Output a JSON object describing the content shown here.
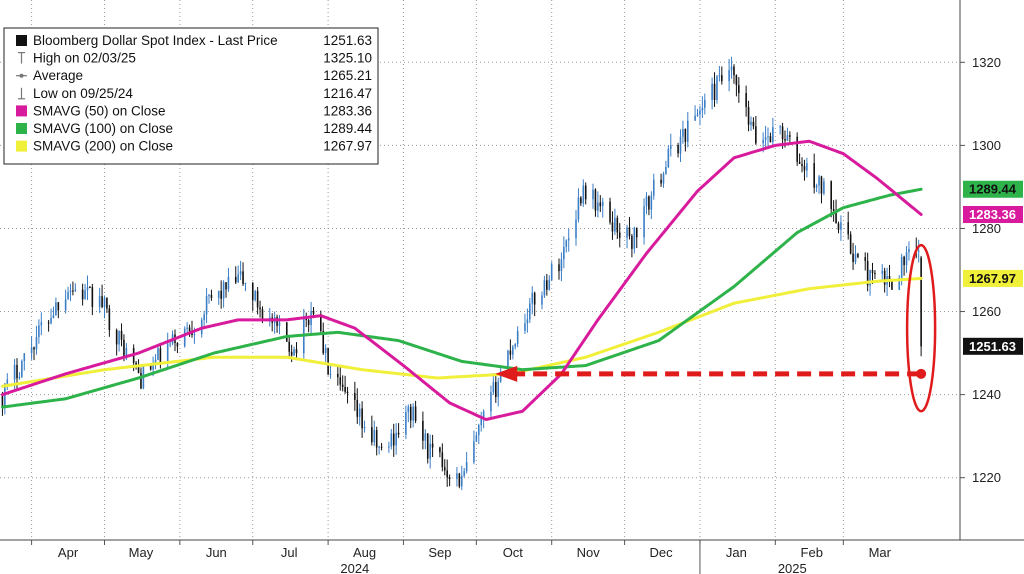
{
  "chart_data": {
    "type": "line",
    "ylim": [
      1205,
      1335
    ],
    "grid": true,
    "legend_placement": "top-left",
    "y_ticks": [
      1220,
      1240,
      1260,
      1280,
      1300,
      1320
    ],
    "x_ticks": [
      {
        "label": "Apr",
        "date": "2024-04-01"
      },
      {
        "label": "May",
        "date": "2024-05-01"
      },
      {
        "label": "Jun",
        "date": "2024-06-01"
      },
      {
        "label": "Jul",
        "date": "2024-07-01"
      },
      {
        "label": "Aug",
        "date": "2024-08-01"
      },
      {
        "label": "Sep",
        "date": "2024-09-01"
      },
      {
        "label": "Oct",
        "date": "2024-10-01"
      },
      {
        "label": "Nov",
        "date": "2024-11-01"
      },
      {
        "label": "Dec",
        "date": "2024-12-01"
      },
      {
        "label": "Jan",
        "date": "2025-01-01"
      },
      {
        "label": "Feb",
        "date": "2025-02-01"
      },
      {
        "label": "Mar",
        "date": "2025-03-01"
      }
    ],
    "year_labels": [
      {
        "label": "2024",
        "date": "2024-08-12"
      },
      {
        "label": "2025",
        "date": "2025-02-08"
      }
    ],
    "legend": [
      {
        "name": "Bloomberg Dollar Spot Index - Last Price",
        "value": "1251.63",
        "marker": "square",
        "color": "#111111"
      },
      {
        "name": "High on 02/03/25",
        "value": "1325.10",
        "marker": "high",
        "color": "#777777"
      },
      {
        "name": "Average",
        "value": "1265.21",
        "marker": "avg",
        "color": "#777777"
      },
      {
        "name": "Low on 09/25/24",
        "value": "1216.47",
        "marker": "low",
        "color": "#777777"
      },
      {
        "name": "SMAVG (50)  on Close",
        "value": "1283.36",
        "marker": "square",
        "color": "#d81b9c"
      },
      {
        "name": "SMAVG (100)  on Close",
        "value": "1289.44",
        "marker": "square",
        "color": "#2db34a"
      },
      {
        "name": "SMAVG (200)  on Close",
        "value": "1267.97",
        "marker": "square",
        "color": "#f0ef3a"
      }
    ],
    "value_tags": [
      {
        "value": 1289.44,
        "text": "1289.44",
        "bg": "#2db34a",
        "fg": "#111111"
      },
      {
        "value": 1283.36,
        "text": "1283.36",
        "bg": "#d81b9c",
        "fg": "#ffffff"
      },
      {
        "value": 1267.97,
        "text": "1267.97",
        "bg": "#f0ef3a",
        "fg": "#111111"
      },
      {
        "value": 1251.63,
        "text": "1251.63",
        "bg": "#111111",
        "fg": "#ffffff"
      }
    ],
    "colors": {
      "up": "#3a7ec6",
      "down": "#111111",
      "sma50": "#d81b9c",
      "sma100": "#2db34a",
      "sma200": "#f0ef3a",
      "annotation": "#e01b1b"
    },
    "price_anchors": [
      {
        "date": "2024-03-20",
        "close": 1240
      },
      {
        "date": "2024-04-05",
        "close": 1256
      },
      {
        "date": "2024-04-16",
        "close": 1266
      },
      {
        "date": "2024-04-30",
        "close": 1262
      },
      {
        "date": "2024-05-08",
        "close": 1252
      },
      {
        "date": "2024-05-16",
        "close": 1244
      },
      {
        "date": "2024-05-30",
        "close": 1253
      },
      {
        "date": "2024-06-07",
        "close": 1257
      },
      {
        "date": "2024-06-14",
        "close": 1263
      },
      {
        "date": "2024-06-26",
        "close": 1268
      },
      {
        "date": "2024-07-03",
        "close": 1262
      },
      {
        "date": "2024-07-10",
        "close": 1256
      },
      {
        "date": "2024-07-18",
        "close": 1251
      },
      {
        "date": "2024-07-26",
        "close": 1261
      },
      {
        "date": "2024-08-02",
        "close": 1244
      },
      {
        "date": "2024-08-12",
        "close": 1236
      },
      {
        "date": "2024-08-23",
        "close": 1226
      },
      {
        "date": "2024-09-04",
        "close": 1236
      },
      {
        "date": "2024-09-12",
        "close": 1226
      },
      {
        "date": "2024-09-25",
        "close": 1219
      },
      {
        "date": "2024-10-04",
        "close": 1234
      },
      {
        "date": "2024-10-14",
        "close": 1250
      },
      {
        "date": "2024-10-22",
        "close": 1260
      },
      {
        "date": "2024-11-05",
        "close": 1273
      },
      {
        "date": "2024-11-14",
        "close": 1290
      },
      {
        "date": "2024-11-25",
        "close": 1282
      },
      {
        "date": "2024-12-04",
        "close": 1277
      },
      {
        "date": "2024-12-18",
        "close": 1296
      },
      {
        "date": "2024-12-31",
        "close": 1308
      },
      {
        "date": "2025-01-13",
        "close": 1318
      },
      {
        "date": "2025-01-24",
        "close": 1301
      },
      {
        "date": "2025-02-03",
        "close": 1304
      },
      {
        "date": "2025-02-12",
        "close": 1295
      },
      {
        "date": "2025-02-24",
        "close": 1287
      },
      {
        "date": "2025-03-03",
        "close": 1276
      },
      {
        "date": "2025-03-12",
        "close": 1268
      },
      {
        "date": "2025-03-20",
        "close": 1267
      },
      {
        "date": "2025-03-27",
        "close": 1273
      },
      {
        "date": "2025-04-01",
        "close": 1273
      },
      {
        "date": "2025-04-02",
        "close": 1251.63
      }
    ],
    "sma50": [
      {
        "date": "2024-03-20",
        "value": 1240
      },
      {
        "date": "2024-04-15",
        "value": 1245
      },
      {
        "date": "2024-05-15",
        "value": 1250
      },
      {
        "date": "2024-06-10",
        "value": 1256
      },
      {
        "date": "2024-06-25",
        "value": 1258
      },
      {
        "date": "2024-07-15",
        "value": 1258
      },
      {
        "date": "2024-07-29",
        "value": 1259
      },
      {
        "date": "2024-08-12",
        "value": 1256
      },
      {
        "date": "2024-09-01",
        "value": 1247
      },
      {
        "date": "2024-09-20",
        "value": 1238
      },
      {
        "date": "2024-10-05",
        "value": 1234
      },
      {
        "date": "2024-10-20",
        "value": 1236
      },
      {
        "date": "2024-11-05",
        "value": 1245
      },
      {
        "date": "2024-11-20",
        "value": 1258
      },
      {
        "date": "2024-12-10",
        "value": 1274
      },
      {
        "date": "2024-12-31",
        "value": 1289
      },
      {
        "date": "2025-01-15",
        "value": 1297
      },
      {
        "date": "2025-02-01",
        "value": 1300
      },
      {
        "date": "2025-02-15",
        "value": 1301
      },
      {
        "date": "2025-03-01",
        "value": 1298
      },
      {
        "date": "2025-03-15",
        "value": 1292
      },
      {
        "date": "2025-04-02",
        "value": 1283.36
      }
    ],
    "sma100": [
      {
        "date": "2024-03-20",
        "value": 1237
      },
      {
        "date": "2024-04-15",
        "value": 1239
      },
      {
        "date": "2024-05-15",
        "value": 1244
      },
      {
        "date": "2024-06-15",
        "value": 1250
      },
      {
        "date": "2024-07-15",
        "value": 1254
      },
      {
        "date": "2024-08-05",
        "value": 1255
      },
      {
        "date": "2024-08-30",
        "value": 1253
      },
      {
        "date": "2024-09-25",
        "value": 1248
      },
      {
        "date": "2024-10-20",
        "value": 1246
      },
      {
        "date": "2024-11-15",
        "value": 1247
      },
      {
        "date": "2024-12-15",
        "value": 1253
      },
      {
        "date": "2025-01-15",
        "value": 1266
      },
      {
        "date": "2025-02-10",
        "value": 1279
      },
      {
        "date": "2025-03-01",
        "value": 1285
      },
      {
        "date": "2025-03-20",
        "value": 1288
      },
      {
        "date": "2025-04-02",
        "value": 1289.44
      }
    ],
    "sma200": [
      {
        "date": "2024-03-20",
        "value": 1242
      },
      {
        "date": "2024-05-01",
        "value": 1246
      },
      {
        "date": "2024-06-15",
        "value": 1249
      },
      {
        "date": "2024-07-15",
        "value": 1249
      },
      {
        "date": "2024-08-15",
        "value": 1246
      },
      {
        "date": "2024-09-15",
        "value": 1244
      },
      {
        "date": "2024-10-15",
        "value": 1245
      },
      {
        "date": "2024-11-15",
        "value": 1249
      },
      {
        "date": "2024-12-15",
        "value": 1255
      },
      {
        "date": "2025-01-15",
        "value": 1262
      },
      {
        "date": "2025-02-15",
        "value": 1265.5
      },
      {
        "date": "2025-03-15",
        "value": 1267.3
      },
      {
        "date": "2025-04-02",
        "value": 1267.97
      }
    ],
    "annotation_arrow": {
      "from_date": "2025-04-02",
      "to_date": "2024-10-03",
      "value": 1245
    },
    "annotation_ellipse": {
      "center_date": "2025-04-02",
      "value_top": 1276,
      "value_bottom": 1236
    }
  }
}
